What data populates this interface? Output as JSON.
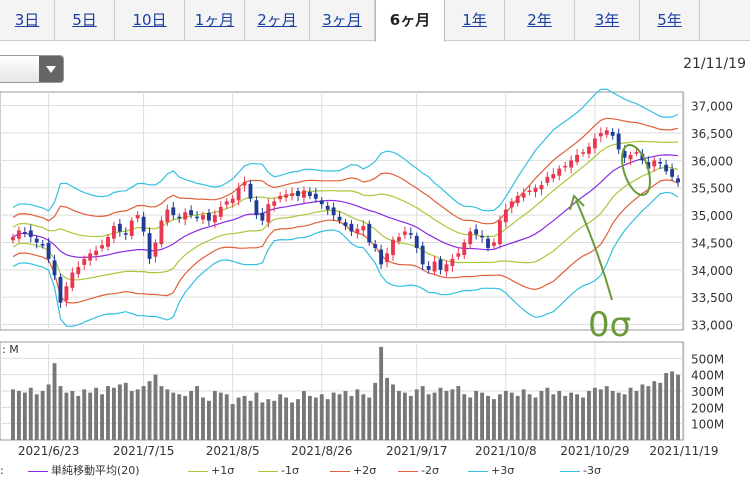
{
  "tabs": [
    {
      "label": "3日",
      "active": false
    },
    {
      "label": "5日",
      "active": false
    },
    {
      "label": "10日",
      "active": false
    },
    {
      "label": "1ヶ月",
      "active": false
    },
    {
      "label": "2ヶ月",
      "active": false
    },
    {
      "label": "3ヶ月",
      "active": false
    },
    {
      "label": "6ヶ月",
      "active": true
    },
    {
      "label": "1年",
      "active": false
    },
    {
      "label": "2年",
      "active": false
    },
    {
      "label": "3年",
      "active": false
    },
    {
      "label": "5年",
      "active": false
    }
  ],
  "header": {
    "date": "21/11/19"
  },
  "annotation": {
    "label": "0σ",
    "color": "#6a9a3a"
  },
  "chart_data": {
    "type": "candlestick",
    "price_axis": {
      "ylim": [
        32900,
        37250
      ],
      "ticks": [
        33000,
        33500,
        34000,
        34500,
        35000,
        35500,
        36000,
        36500,
        37000
      ],
      "tick_labels": [
        "33,000",
        "33,500",
        "34,000",
        "34,500",
        "35,000",
        "35,500",
        "36,000",
        "36,500",
        "37,000"
      ]
    },
    "volume_axis": {
      "label": ": M",
      "ylim": [
        0,
        600
      ],
      "ticks": [
        100,
        200,
        300,
        400,
        500
      ],
      "tick_labels": [
        "100M",
        "200M",
        "300M",
        "400M",
        "500M"
      ]
    },
    "x_tick_labels": [
      "2021/6/23",
      "2021/7/15",
      "2021/8/5",
      "2021/8/26",
      "2021/9/17",
      "2021/10/8",
      "2021/10/29",
      "2021/11/19"
    ],
    "x_tick_index": [
      6,
      22,
      37,
      52,
      68,
      83,
      98,
      113
    ],
    "close": [
      34600,
      34720,
      34680,
      34600,
      34500,
      34450,
      34200,
      33900,
      33400,
      33700,
      33950,
      34050,
      34200,
      34300,
      34350,
      34450,
      34600,
      34800,
      34700,
      34650,
      34900,
      35000,
      34700,
      34200,
      34500,
      34900,
      35100,
      35000,
      34950,
      35050,
      35000,
      34950,
      35000,
      34900,
      35000,
      35150,
      35250,
      35300,
      35500,
      35600,
      35300,
      35000,
      34900,
      35200,
      35250,
      35350,
      35380,
      35400,
      35350,
      35450,
      35350,
      35300,
      35200,
      35100,
      35000,
      34900,
      34800,
      34700,
      34750,
      34800,
      34500,
      34400,
      34100,
      34300,
      34550,
      34600,
      34700,
      34650,
      34400,
      34100,
      34000,
      34150,
      34000,
      34100,
      34200,
      34300,
      34500,
      34700,
      34650,
      34600,
      34400,
      34500,
      34900,
      35100,
      35250,
      35350,
      35400,
      35450,
      35500,
      35550,
      35700,
      35750,
      35850,
      35900,
      36000,
      36100,
      36150,
      36250,
      36400,
      36500,
      36550,
      36450,
      36200,
      36050,
      36100,
      36150,
      36000,
      35850,
      36000,
      35950,
      35800,
      35700,
      35600
    ],
    "volume": [
      310,
      300,
      290,
      320,
      280,
      300,
      340,
      470,
      330,
      290,
      300,
      270,
      310,
      290,
      320,
      280,
      330,
      320,
      340,
      350,
      300,
      310,
      330,
      360,
      400,
      330,
      310,
      290,
      280,
      270,
      300,
      330,
      260,
      240,
      300,
      290,
      280,
      220,
      260,
      270,
      240,
      290,
      230,
      250,
      240,
      280,
      260,
      230,
      250,
      300,
      270,
      260,
      280,
      250,
      290,
      280,
      300,
      270,
      310,
      280,
      260,
      350,
      570,
      380,
      340,
      300,
      290,
      270,
      310,
      330,
      280,
      290,
      320,
      300,
      310,
      330,
      280,
      260,
      300,
      290,
      270,
      250,
      280,
      300,
      290,
      270,
      310,
      280,
      260,
      300,
      320,
      280,
      300,
      270,
      290,
      280,
      260,
      300,
      320,
      310,
      330,
      300,
      290,
      280,
      320,
      300,
      340,
      330,
      360,
      350,
      410,
      420,
      400
    ],
    "series": [
      {
        "name": "単純移動平均(20)",
        "color": "#8a2be2"
      },
      {
        "name": "+1σ",
        "color": "#a9c83a"
      },
      {
        "name": "-1σ",
        "color": "#a9c83a"
      },
      {
        "name": "+2σ",
        "color": "#e0603a"
      },
      {
        "name": "-2σ",
        "color": "#e0603a"
      },
      {
        "name": "+3σ",
        "color": "#35c0e0"
      },
      {
        "name": "-3σ",
        "color": "#35c0e0"
      }
    ],
    "up_color": "#e8384f",
    "down_color": "#1f3b94",
    "legend_prefix": ":"
  }
}
